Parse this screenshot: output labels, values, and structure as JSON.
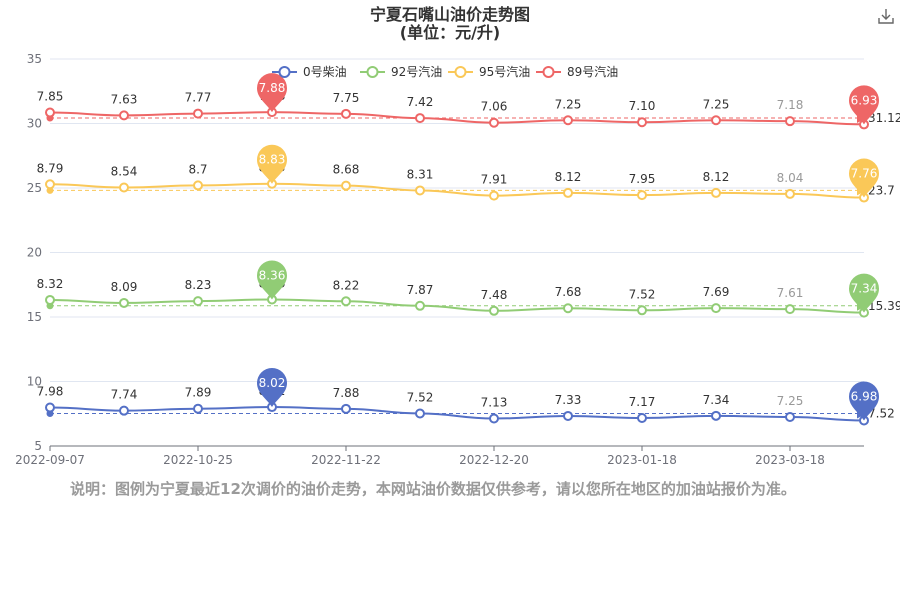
{
  "chart_data": {
    "type": "line",
    "title": "宁夏石嘴山油价走势图",
    "subtitle": "(单位：元/升)",
    "x_ticks": [
      "2022-09-07",
      "2022-10-25",
      "2022-11-22",
      "2022-12-20",
      "2023-01-18",
      "2023-03-18"
    ],
    "ylim": [
      5,
      35
    ],
    "y_ticks": [
      5,
      10,
      15,
      20,
      25,
      30,
      35
    ],
    "grid": true,
    "legend_position": "top",
    "series": [
      {
        "name": "0号柴油",
        "color": "#5470c6",
        "offset": 0,
        "values": [
          7.98,
          7.74,
          7.89,
          8.02,
          7.88,
          7.52,
          7.13,
          7.33,
          7.17,
          7.34,
          7.25,
          6.98
        ],
        "labels": [
          "7.98",
          "7.74",
          "7.89",
          "8.02",
          "7.88",
          "7.52",
          "7.13",
          "7.33",
          "7.17",
          "7.34",
          "7.25",
          ""
        ],
        "max_pin": "8.02",
        "min_pin": "6.98",
        "avg_label": "7.52"
      },
      {
        "name": "92号汽油",
        "color": "#91cc75",
        "offset": 8,
        "values": [
          8.32,
          8.09,
          8.23,
          8.36,
          8.22,
          7.87,
          7.48,
          7.68,
          7.52,
          7.69,
          7.61,
          7.34
        ],
        "labels": [
          "8.32",
          "8.09",
          "8.23",
          "8.36",
          "8.22",
          "7.87",
          "7.48",
          "7.68",
          "7.52",
          "7.69",
          "7.61",
          ""
        ],
        "max_pin": "8.36",
        "min_pin": "7.34",
        "avg_label": "15.39"
      },
      {
        "name": "95号汽油",
        "color": "#fac858",
        "offset": 16.5,
        "values": [
          8.79,
          8.54,
          8.7,
          8.83,
          8.68,
          8.31,
          7.91,
          8.12,
          7.95,
          8.12,
          8.04,
          7.76
        ],
        "labels": [
          "8.79",
          "8.54",
          "8.7",
          "8.83",
          "8.68",
          "8.31",
          "7.91",
          "8.12",
          "7.95",
          "8.12",
          "8.04",
          ""
        ],
        "max_pin": "8.83",
        "min_pin": "7.76",
        "avg_label": "23.7"
      },
      {
        "name": "89号汽油",
        "color": "#ee6666",
        "offset": 23,
        "values": [
          7.85,
          7.63,
          7.77,
          7.88,
          7.75,
          7.42,
          7.06,
          7.25,
          7.1,
          7.25,
          7.18,
          6.93
        ],
        "labels": [
          "7.85",
          "7.63",
          "7.77",
          "7.88",
          "7.75",
          "7.42",
          "7.06",
          "7.25",
          "7.10",
          "7.25",
          "7.18",
          ""
        ],
        "max_pin": "7.88",
        "min_pin": "6.93",
        "avg_label": "31.12"
      }
    ]
  },
  "note": "说明：图例为宁夏最近12次调价的油价走势，本网站油价数据仅供参考，请以您所在地区的加油站报价为准。",
  "toolbar": {
    "download_icon": "download-icon"
  }
}
